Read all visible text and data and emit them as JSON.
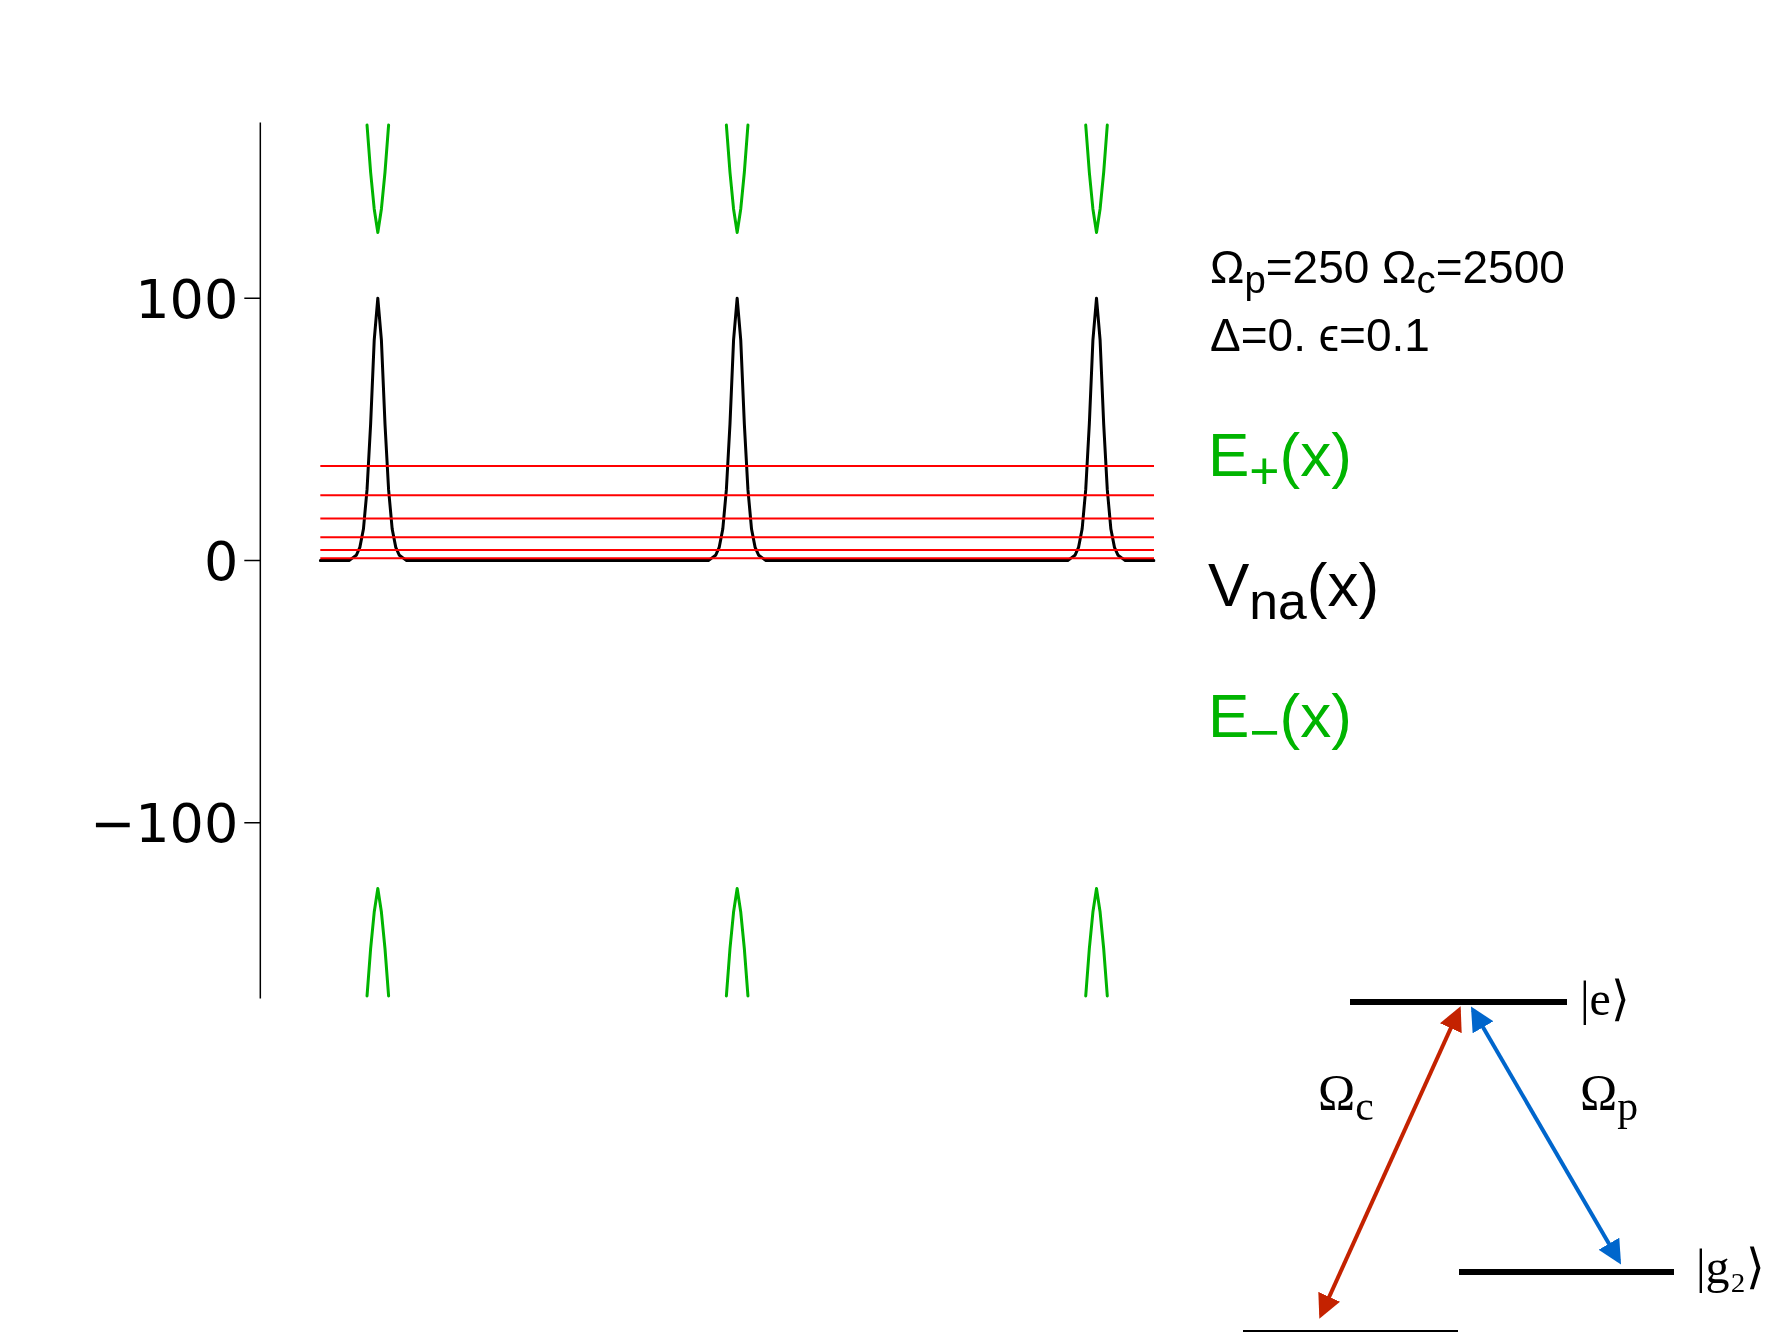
{
  "chart_data": {
    "type": "line",
    "marker": "none",
    "line_style": "solid",
    "grid": false,
    "tick_labels": "y",
    "categories": [
      null,
      null,
      null,
      null,
      null,
      null,
      null,
      null,
      null,
      null,
      null,
      null,
      null,
      null,
      null,
      null,
      null,
      null,
      null,
      null,
      null,
      null,
      null,
      null,
      null,
      null,
      null,
      null,
      null,
      null,
      null,
      null,
      null,
      null,
      null,
      null,
      null,
      null,
      null,
      null,
      null,
      null,
      null,
      null,
      null,
      null,
      null,
      null,
      null,
      null,
      null,
      null,
      null,
      null,
      null,
      null,
      null,
      null,
      null,
      null,
      null,
      null,
      null,
      null,
      null,
      null,
      null,
      null,
      null,
      null,
      null,
      null,
      null,
      null,
      null,
      null,
      null,
      null,
      null,
      null,
      null,
      null,
      null,
      null,
      null,
      null,
      null,
      null,
      null,
      null,
      null,
      null,
      null,
      null,
      null,
      null,
      null,
      null,
      null,
      null,
      null,
      null,
      null,
      null,
      null,
      null,
      null,
      null,
      null,
      null,
      null,
      null,
      null,
      null,
      null,
      null,
      null,
      null,
      null,
      null,
      null,
      null,
      null,
      null,
      null,
      null,
      null,
      null,
      null,
      null,
      null,
      null,
      null,
      null,
      null,
      null,
      null,
      null,
      null,
      null,
      null,
      null,
      null,
      null,
      null,
      null,
      null,
      null,
      null,
      null,
      null,
      null,
      null,
      null,
      null,
      null,
      null,
      null,
      null,
      null,
      null,
      null,
      null,
      null,
      null,
      null,
      null,
      null,
      null,
      null,
      null,
      null,
      null,
      null,
      null,
      null,
      null,
      null,
      null,
      null,
      null,
      null,
      null,
      null,
      null,
      null,
      null,
      null,
      null,
      null,
      null,
      null,
      null,
      null,
      null,
      null,
      null,
      null,
      null,
      null,
      null,
      null,
      null,
      null,
      null,
      null,
      null,
      null,
      null,
      null,
      null,
      null,
      null,
      null,
      null,
      null,
      null,
      null,
      null,
      null,
      null,
      null,
      null,
      null,
      null,
      null,
      null,
      null,
      null,
      null,
      null,
      null,
      null
    ],
    "ylim": [
      -167,
      167
    ],
    "yticks": [
      {
        "value": -100,
        "label": "−100"
      },
      0,
      100
    ],
    "series": [
      {
        "name": "E$_{+}$(x)",
        "color": "#00b400",
        "values": [
          null,
          null,
          null,
          null,
          null,
          null,
          null,
          null,
          null,
          null,
          null,
          null,
          null,
          166,
          148,
          134,
          125,
          134,
          148,
          166,
          null,
          null,
          null,
          null,
          null,
          null,
          null,
          null,
          null,
          null,
          null,
          null,
          null,
          null,
          null,
          null,
          null,
          null,
          null,
          null,
          null,
          null,
          null,
          null,
          null,
          null,
          null,
          null,
          null,
          null,
          null,
          null,
          null,
          null,
          null,
          null,
          null,
          null,
          null,
          null,
          null,
          null,
          null,
          null,
          null,
          null,
          null,
          null,
          null,
          null,
          null,
          null,
          null,
          null,
          null,
          null,
          null,
          null,
          null,
          null,
          null,
          null,
          null,
          null,
          null,
          null,
          null,
          null,
          null,
          null,
          null,
          null,
          null,
          null,
          null,
          null,
          null,
          null,
          null,
          null,
          null,
          null,
          null,
          null,
          null,
          null,
          null,
          null,
          null,
          null,
          null,
          null,
          null,
          166,
          148,
          134,
          125,
          134,
          148,
          166,
          null,
          null,
          null,
          null,
          null,
          null,
          null,
          null,
          null,
          null,
          null,
          null,
          null,
          null,
          null,
          null,
          null,
          null,
          null,
          null,
          null,
          null,
          null,
          null,
          null,
          null,
          null,
          null,
          null,
          null,
          null,
          null,
          null,
          null,
          null,
          null,
          null,
          null,
          null,
          null,
          null,
          null,
          null,
          null,
          null,
          null,
          null,
          null,
          null,
          null,
          null,
          null,
          null,
          null,
          null,
          null,
          null,
          null,
          null,
          null,
          null,
          null,
          null,
          null,
          null,
          null,
          null,
          null,
          null,
          null,
          null,
          null,
          null,
          null,
          null,
          null,
          null,
          null,
          null,
          null,
          null,
          null,
          null,
          null,
          null,
          null,
          null,
          null,
          null,
          null,
          null,
          null,
          null,
          166,
          148,
          134,
          125,
          134,
          148,
          166,
          null,
          null,
          null,
          null,
          null,
          null,
          null,
          null,
          null,
          null,
          null,
          null,
          null
        ]
      },
      {
        "name": "V$_{na}$(x)",
        "color": "#000000",
        "values": [
          0,
          0,
          0,
          0,
          0,
          0,
          0,
          0,
          0,
          1,
          2,
          5,
          12,
          27,
          52,
          84,
          100,
          84,
          52,
          27,
          12,
          5,
          2,
          1,
          0,
          0,
          0,
          0,
          0,
          0,
          0,
          0,
          0,
          0,
          0,
          0,
          0,
          0,
          0,
          0,
          0,
          0,
          0,
          0,
          0,
          0,
          0,
          0,
          0,
          0,
          0,
          0,
          0,
          0,
          0,
          0,
          0,
          0,
          0,
          0,
          0,
          0,
          0,
          0,
          0,
          0,
          0,
          0,
          0,
          0,
          0,
          0,
          0,
          0,
          0,
          0,
          0,
          0,
          0,
          0,
          0,
          0,
          0,
          0,
          0,
          0,
          0,
          0,
          0,
          0,
          0,
          0,
          0,
          0,
          0,
          0,
          0,
          0,
          0,
          0,
          0,
          0,
          0,
          0,
          0,
          0,
          0,
          0,
          0,
          1,
          2,
          5,
          12,
          27,
          52,
          84,
          100,
          84,
          52,
          27,
          12,
          5,
          2,
          1,
          0,
          0,
          0,
          0,
          0,
          0,
          0,
          0,
          0,
          0,
          0,
          0,
          0,
          0,
          0,
          0,
          0,
          0,
          0,
          0,
          0,
          0,
          0,
          0,
          0,
          0,
          0,
          0,
          0,
          0,
          0,
          0,
          0,
          0,
          0,
          0,
          0,
          0,
          0,
          0,
          0,
          0,
          0,
          0,
          0,
          0,
          0,
          0,
          0,
          0,
          0,
          0,
          0,
          0,
          0,
          0,
          0,
          0,
          0,
          0,
          0,
          0,
          0,
          0,
          0,
          0,
          0,
          0,
          0,
          0,
          0,
          0,
          0,
          0,
          0,
          0,
          0,
          0,
          0,
          0,
          0,
          0,
          0,
          0,
          0,
          1,
          2,
          5,
          12,
          27,
          52,
          84,
          100,
          84,
          52,
          27,
          12,
          5,
          2,
          1,
          0,
          0,
          0,
          0,
          0,
          0,
          0,
          0,
          0
        ]
      },
      {
        "name": "E$_{−}$(x)",
        "color": "#00b400",
        "values": [
          null,
          null,
          null,
          null,
          null,
          null,
          null,
          null,
          null,
          null,
          null,
          null,
          null,
          -166,
          -148,
          -134,
          -125,
          -134,
          -148,
          -166,
          null,
          null,
          null,
          null,
          null,
          null,
          null,
          null,
          null,
          null,
          null,
          null,
          null,
          null,
          null,
          null,
          null,
          null,
          null,
          null,
          null,
          null,
          null,
          null,
          null,
          null,
          null,
          null,
          null,
          null,
          null,
          null,
          null,
          null,
          null,
          null,
          null,
          null,
          null,
          null,
          null,
          null,
          null,
          null,
          null,
          null,
          null,
          null,
          null,
          null,
          null,
          null,
          null,
          null,
          null,
          null,
          null,
          null,
          null,
          null,
          null,
          null,
          null,
          null,
          null,
          null,
          null,
          null,
          null,
          null,
          null,
          null,
          null,
          null,
          null,
          null,
          null,
          null,
          null,
          null,
          null,
          null,
          null,
          null,
          null,
          null,
          null,
          null,
          null,
          null,
          null,
          null,
          null,
          -166,
          -148,
          -134,
          -125,
          -134,
          -148,
          -166,
          null,
          null,
          null,
          null,
          null,
          null,
          null,
          null,
          null,
          null,
          null,
          null,
          null,
          null,
          null,
          null,
          null,
          null,
          null,
          null,
          null,
          null,
          null,
          null,
          null,
          null,
          null,
          null,
          null,
          null,
          null,
          null,
          null,
          null,
          null,
          null,
          null,
          null,
          null,
          null,
          null,
          null,
          null,
          null,
          null,
          null,
          null,
          null,
          null,
          null,
          null,
          null,
          null,
          null,
          null,
          null,
          null,
          null,
          null,
          null,
          null,
          null,
          null,
          null,
          null,
          null,
          null,
          null,
          null,
          null,
          null,
          null,
          null,
          null,
          null,
          null,
          null,
          null,
          null,
          null,
          null,
          null,
          null,
          null,
          null,
          null,
          null,
          null,
          null,
          null,
          null,
          null,
          null,
          -166,
          -148,
          -134,
          -125,
          -134,
          -148,
          -166,
          null,
          null,
          null,
          null,
          null,
          null,
          null,
          null,
          null,
          null,
          null,
          null,
          null
        ]
      }
    ],
    "ref_lines": [
      {
        "axis": "y",
        "value": 36,
        "color": "#ff0000"
      },
      {
        "axis": "y",
        "value": 24.9,
        "color": "#ff0000"
      },
      {
        "axis": "y",
        "value": 16,
        "color": "#ff0000"
      },
      {
        "axis": "y",
        "value": 8.9,
        "color": "#ff0000"
      },
      {
        "axis": "y",
        "value": 4,
        "color": "#ff0000"
      },
      {
        "axis": "y",
        "value": 0.9,
        "color": "#ff0000"
      }
    ],
    "annotations": [
      "Ω$_{p}$=250 Ω$_{c}$=2500",
      "Δ=0. ϵ=0.1",
      "|e⟩",
      "Ω$_{c}$",
      "Ω$_{p}$",
      "|g₂⟩"
    ]
  }
}
